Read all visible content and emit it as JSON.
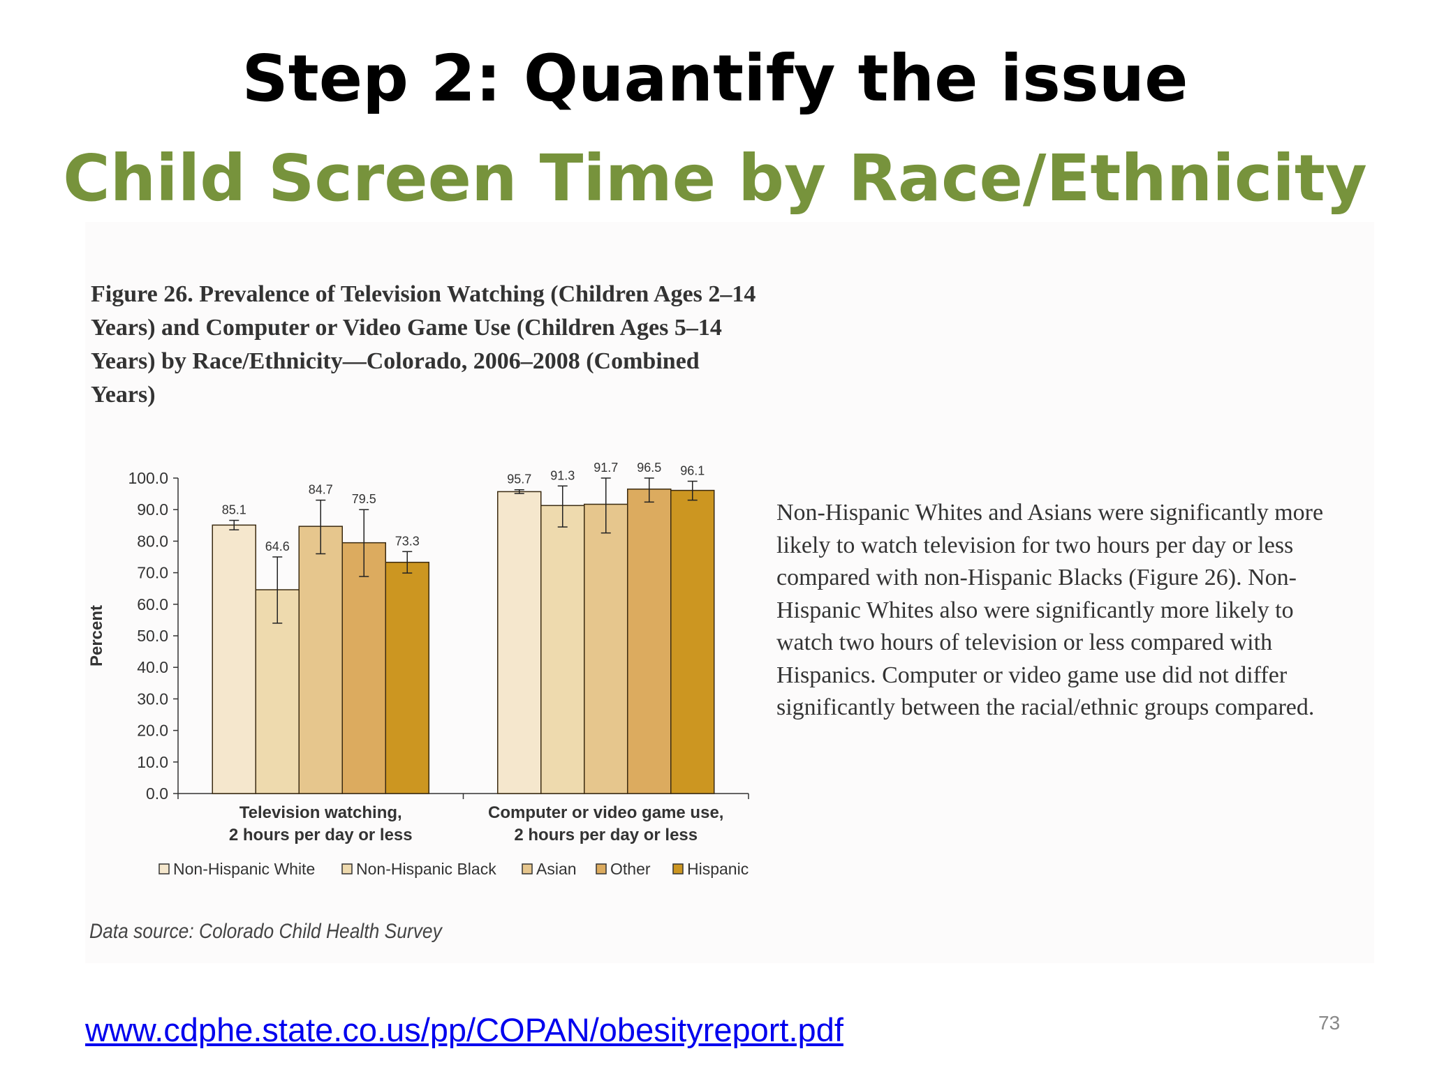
{
  "slide": {
    "title": "Step 2: Quantify the issue",
    "subtitle": "Child Screen Time by Race/Ethnicity",
    "figure_caption": "Figure 26. Prevalence of Television Watching (Children Ages 2–14 Years) and Computer or Video Game Use (Children Ages 5–14 Years) by Race/Ethnicity—Colorado, 2006–2008 (Combined Years)",
    "data_source": "Data source: Colorado Child Health Survey",
    "body_text": "Non-Hispanic Whites and Asians were significantly more likely to watch television for two hours per day or less compared with non-Hispanic Blacks (Figure 26). Non-Hispanic Whites also were significantly more likely to watch two hours of television or less compared with Hispanics. Computer or video game use did not differ significantly between the racial/ethnic groups compared.",
    "link_text": "www.cdphe.state.co.us/pp/COPAN/obesityreport.pdf",
    "page_number": "73"
  },
  "chart_data": {
    "type": "bar",
    "title": "",
    "xlabel": "",
    "ylabel": "Percent",
    "ylim": [
      0,
      100
    ],
    "yticks": [
      "0.0",
      "10.0",
      "20.0",
      "30.0",
      "40.0",
      "50.0",
      "60.0",
      "70.0",
      "80.0",
      "90.0",
      "100.0"
    ],
    "categories": [
      [
        "Television watching,",
        "2 hours per day or less"
      ],
      [
        "Computer or video game use,",
        "2 hours per day or less"
      ]
    ],
    "series": [
      {
        "name": "Non-Hispanic White",
        "color": "#f5e7cd",
        "values": [
          85.1,
          95.7
        ],
        "error_low": [
          83.6,
          95.1
        ],
        "error_high": [
          86.6,
          96.3
        ],
        "labels": [
          "85.1",
          "95.7"
        ]
      },
      {
        "name": "Non-Hispanic Black",
        "color": "#eedaae",
        "values": [
          64.6,
          91.3
        ],
        "error_low": [
          54.0,
          84.5
        ],
        "error_high": [
          75.0,
          97.5
        ],
        "labels": [
          "64.6",
          "91.3"
        ]
      },
      {
        "name": "Asian",
        "color": "#e6c68d",
        "values": [
          84.7,
          91.7
        ],
        "error_low": [
          76.0,
          82.6
        ],
        "error_high": [
          93.0,
          100.0
        ],
        "labels": [
          "84.7",
          "91.7"
        ]
      },
      {
        "name": "Other",
        "color": "#dcab5f",
        "values": [
          79.5,
          96.5
        ],
        "error_low": [
          68.8,
          92.4
        ],
        "error_high": [
          90.0,
          100.0
        ],
        "labels": [
          "79.5",
          "96.5"
        ]
      },
      {
        "name": "Hispanic",
        "color": "#cc9621",
        "values": [
          73.3,
          96.1
        ],
        "error_low": [
          69.9,
          93.0
        ],
        "error_high": [
          76.7,
          99.0
        ],
        "labels": [
          "73.3",
          "96.1"
        ]
      }
    ],
    "grid": false,
    "legend_position": "bottom"
  }
}
